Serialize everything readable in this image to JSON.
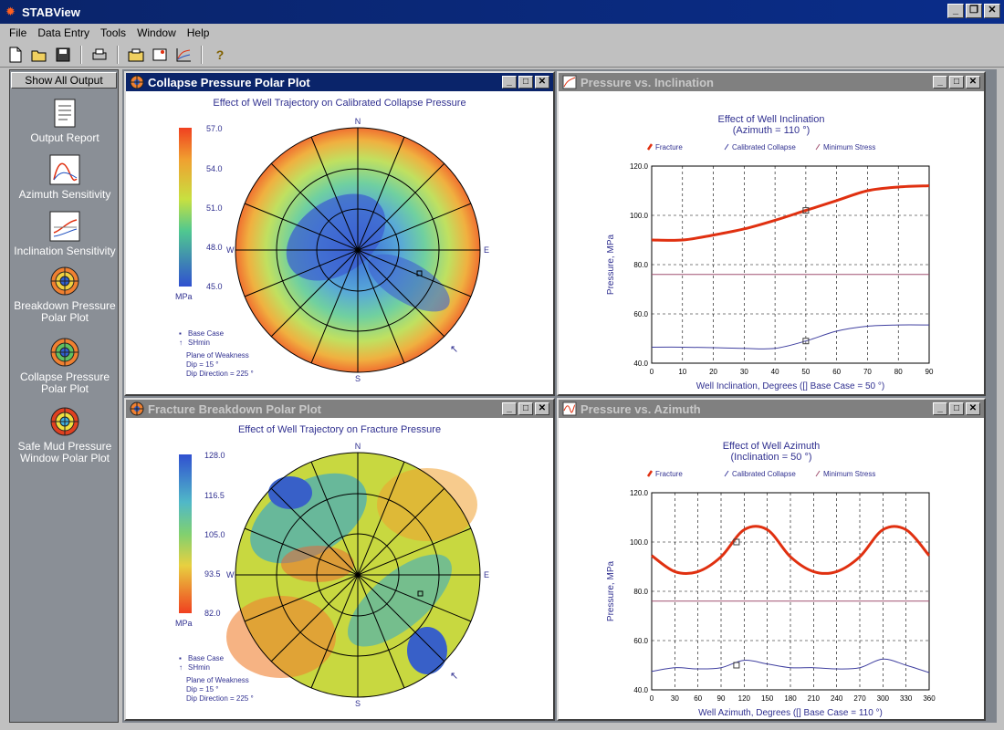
{
  "app": {
    "title": "STABView"
  },
  "menu": [
    "File",
    "Data Entry",
    "Tools",
    "Window",
    "Help"
  ],
  "sidebar": {
    "show_all": "Show All Output",
    "items": [
      {
        "label": "Output Report",
        "icon": "report-icon"
      },
      {
        "label": "Azimuth Sensitivity",
        "icon": "azimuth-chart-icon"
      },
      {
        "label": "Inclination Sensitivity",
        "icon": "inclination-chart-icon"
      },
      {
        "label": "Breakdown Pressure Polar Plot",
        "icon": "polar-plot-icon"
      },
      {
        "label": "Collapse Pressure Polar Plot",
        "icon": "polar-plot-icon"
      },
      {
        "label": "Safe Mud Pressure Window Polar Plot",
        "icon": "polar-plot-icon"
      }
    ]
  },
  "windows": {
    "collapse": {
      "title": "Collapse Pressure Polar Plot",
      "subtitle": "Effect of Well Trajectory on Calibrated Collapse Pressure",
      "scale": [
        "57.0",
        "54.0",
        "51.0",
        "48.0",
        "45.0"
      ],
      "unit": "MPa",
      "compass": {
        "n": "N",
        "s": "S",
        "e": "E",
        "w": "W"
      },
      "legend": {
        "base": "Base Case",
        "shmin": "SHmin",
        "plane": "Plane of Weakness",
        "dip": "Dip = 15 °",
        "dipdir": "Dip Direction = 225 °"
      }
    },
    "fracture": {
      "title": "Fracture Breakdown Polar Plot",
      "subtitle": "Effect of Well Trajectory on Fracture Pressure",
      "scale": [
        "128.0",
        "116.5",
        "105.0",
        "93.5",
        "82.0"
      ],
      "unit": "MPa",
      "compass": {
        "n": "N",
        "s": "S",
        "e": "E",
        "w": "W"
      },
      "legend": {
        "base": "Base Case",
        "shmin": "SHmin",
        "plane": "Plane of Weakness",
        "dip": "Dip = 15 °",
        "dipdir": "Dip Direction = 225 °"
      }
    },
    "inclination": {
      "title": "Pressure vs. Inclination"
    },
    "azimuth": {
      "title": "Pressure vs. Azimuth"
    }
  },
  "chart_data": [
    {
      "type": "line",
      "title": "Effect of Well Inclination",
      "subtitle": "(Azimuth = 110 °)",
      "xlabel": "Well Inclination, Degrees ([] Base Case = 50 °)",
      "ylabel": "Pressure, MPa",
      "xlim": [
        0,
        90
      ],
      "ylim": [
        40,
        120
      ],
      "xticks": [
        "0",
        "10",
        "20",
        "30",
        "40",
        "50",
        "60",
        "70",
        "80",
        "90"
      ],
      "yticks": [
        "40.0",
        "60.0",
        "80.0",
        "100.0",
        "120.0"
      ],
      "legend": [
        "Fracture",
        "Calibrated Collapse",
        "Minimum Stress"
      ],
      "x": [
        0,
        10,
        20,
        30,
        40,
        50,
        60,
        70,
        80,
        90
      ],
      "series": [
        {
          "name": "Fracture",
          "color": "#e03010",
          "values": [
            90,
            90,
            92,
            94.5,
            98,
            102,
            106,
            110,
            111.5,
            112
          ]
        },
        {
          "name": "Minimum Stress",
          "color": "#a05070",
          "values": [
            76,
            76,
            76,
            76,
            76,
            76,
            76,
            76,
            76,
            76
          ]
        },
        {
          "name": "Calibrated Collapse",
          "color": "#4040a0",
          "values": [
            46.5,
            46.5,
            46.3,
            46,
            46,
            49,
            53,
            55,
            55.5,
            55.5
          ]
        }
      ],
      "base_case": {
        "x": 50,
        "fracture": 102,
        "collapse": 49
      }
    },
    {
      "type": "line",
      "title": "Effect of Well Azimuth",
      "subtitle": "(Inclination = 50 °)",
      "xlabel": "Well Azimuth, Degrees ([] Base Case = 110 °)",
      "ylabel": "Pressure, MPa",
      "xlim": [
        0,
        360
      ],
      "ylim": [
        40,
        120
      ],
      "xticks": [
        "0",
        "30",
        "60",
        "90",
        "120",
        "150",
        "180",
        "210",
        "240",
        "270",
        "300",
        "330",
        "360"
      ],
      "yticks": [
        "40.0",
        "60.0",
        "80.0",
        "100.0",
        "120.0"
      ],
      "legend": [
        "Fracture",
        "Calibrated Collapse",
        "Minimum Stress"
      ],
      "x": [
        0,
        30,
        60,
        90,
        120,
        150,
        180,
        210,
        240,
        270,
        300,
        330,
        360
      ],
      "series": [
        {
          "name": "Fracture",
          "color": "#e03010",
          "values": [
            94.5,
            88,
            88,
            94,
            105,
            105,
            94,
            88,
            88,
            94,
            105,
            105,
            94.5
          ]
        },
        {
          "name": "Minimum Stress",
          "color": "#a05070",
          "values": [
            76,
            76,
            76,
            76,
            76,
            76,
            76,
            76,
            76,
            76,
            76,
            76,
            76
          ]
        },
        {
          "name": "Calibrated Collapse",
          "color": "#4040a0",
          "values": [
            47.5,
            49,
            48.5,
            49,
            52,
            50.5,
            49,
            49,
            48.5,
            49,
            52.5,
            50,
            47
          ]
        }
      ],
      "base_case": {
        "x": 110,
        "fracture": 100,
        "collapse": 50
      }
    }
  ]
}
